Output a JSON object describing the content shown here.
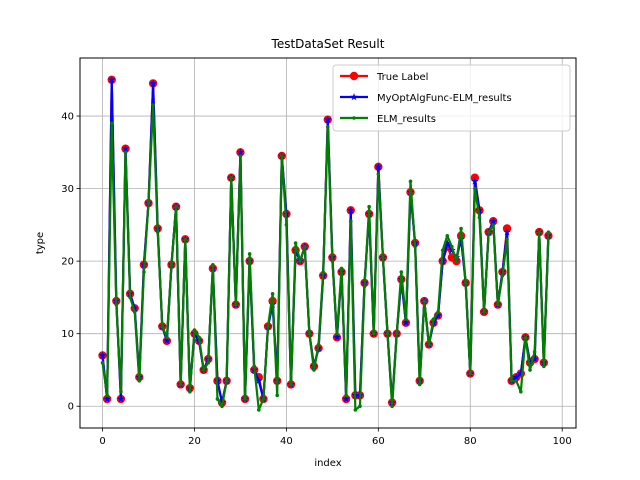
{
  "chart_data": {
    "type": "line",
    "title": "TestDataSet Result",
    "xlabel": "index",
    "ylabel": "type",
    "xlim": [
      -4.9,
      103
    ],
    "ylim": [
      -3,
      48
    ],
    "xticks": [
      0,
      20,
      40,
      60,
      80,
      100
    ],
    "yticks": [
      0,
      10,
      20,
      30,
      40
    ],
    "grid": true,
    "legend_position": "top-right",
    "x": [
      0,
      1,
      2,
      3,
      4,
      5,
      6,
      7,
      8,
      9,
      10,
      11,
      12,
      13,
      14,
      15,
      16,
      17,
      18,
      19,
      20,
      21,
      22,
      23,
      24,
      25,
      26,
      27,
      28,
      29,
      30,
      31,
      32,
      33,
      34,
      35,
      36,
      37,
      38,
      39,
      40,
      41,
      42,
      43,
      44,
      45,
      46,
      47,
      48,
      49,
      50,
      51,
      52,
      53,
      54,
      55,
      56,
      57,
      58,
      59,
      60,
      61,
      62,
      63,
      64,
      65,
      66,
      67,
      68,
      69,
      70,
      71,
      72,
      73,
      74,
      75,
      76,
      77,
      78,
      79,
      80,
      81,
      82,
      83,
      84,
      85,
      86,
      87,
      88,
      89,
      90,
      91,
      92,
      93,
      94,
      95,
      96,
      97
    ],
    "series": [
      {
        "name": "True Label",
        "color": "#ff0000",
        "marker": "circle",
        "values": [
          7,
          1,
          45,
          14.5,
          1,
          35.5,
          15.5,
          13.5,
          4,
          19.5,
          28,
          44.5,
          24.5,
          11,
          9,
          19.5,
          27.5,
          3,
          23,
          2.5,
          10,
          9,
          5,
          6.5,
          19,
          3.5,
          0.5,
          3.5,
          31.5,
          14,
          35,
          1,
          20,
          5,
          4,
          1,
          11,
          14.5,
          3.5,
          34.5,
          26.5,
          3,
          21.5,
          20,
          22,
          10,
          5.5,
          8,
          18,
          39.5,
          20.5,
          9.5,
          18.5,
          1,
          27,
          1.5,
          1.5,
          17,
          26.5,
          10,
          33,
          20.5,
          10,
          0.5,
          10,
          17.5,
          11.5,
          29.5,
          22.5,
          3.5,
          14.5,
          8.5,
          11.5,
          12.5,
          20,
          22,
          20.5,
          20,
          23.5,
          17,
          4.5,
          31.5,
          27,
          13,
          24,
          25.5,
          14,
          18.5,
          24.5,
          3.5,
          4,
          4.5,
          9.5,
          6,
          6.5,
          24,
          6,
          23.5
        ]
      },
      {
        "name": "MyOptAlgFunc-ELM_results",
        "color": "#0000ff",
        "marker": "star",
        "values": [
          7,
          1,
          45,
          14.5,
          1,
          35.5,
          15.5,
          13.5,
          4,
          19.5,
          28,
          44.5,
          24.5,
          11,
          9,
          19.5,
          27.5,
          3,
          23,
          2.5,
          10,
          9,
          5,
          6.5,
          19,
          3.5,
          0.5,
          3.5,
          31.5,
          14,
          35,
          1,
          20,
          5,
          3.5,
          1,
          11,
          14,
          3.5,
          34.5,
          26.5,
          3,
          21.5,
          20,
          22,
          10,
          5.5,
          8,
          18,
          39.5,
          20.5,
          9.5,
          18.5,
          1,
          27,
          1.5,
          1.5,
          17,
          26.5,
          10,
          33,
          20.5,
          10,
          0.5,
          10,
          17.5,
          11.5,
          29.5,
          22.5,
          3.5,
          14.5,
          8.5,
          11.5,
          12.5,
          20,
          22.5,
          21.5,
          20.5,
          23,
          17,
          4.5,
          31,
          27,
          13,
          24,
          25.5,
          14,
          18.5,
          24,
          3.5,
          4,
          4.5,
          9.5,
          6,
          6.5,
          24,
          6,
          23.5
        ]
      },
      {
        "name": "ELM_results",
        "color": "#008000",
        "marker": "point",
        "values": [
          6,
          1.5,
          39,
          14,
          2,
          35,
          15,
          13,
          3.5,
          18.5,
          28,
          41.5,
          24,
          11,
          9.5,
          19.5,
          27.5,
          3,
          23,
          2,
          10.5,
          9.5,
          5,
          6,
          19.5,
          1,
          0,
          3.5,
          31.5,
          14,
          34.5,
          1,
          21,
          5.5,
          -0.5,
          1,
          11,
          15.5,
          1.5,
          34.5,
          25,
          3,
          22.5,
          20,
          22,
          10,
          5,
          8.5,
          18.5,
          38.5,
          20,
          10,
          19,
          1.5,
          25.5,
          -0.5,
          0,
          16.5,
          27.5,
          10,
          32,
          20.5,
          10,
          0,
          10,
          18.5,
          12,
          31,
          22,
          3,
          14.5,
          8.5,
          12,
          13,
          21.5,
          23.5,
          22,
          20,
          24.5,
          17,
          4.5,
          30,
          26,
          13,
          24,
          25,
          14,
          18,
          23,
          3.5,
          3.5,
          2,
          9.5,
          5,
          7.5,
          24,
          5.5,
          24
        ]
      }
    ]
  }
}
